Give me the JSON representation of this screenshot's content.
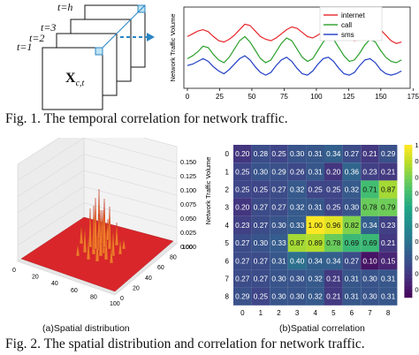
{
  "fig1": {
    "frame_labels": [
      "t=h",
      "t=3",
      "t=2",
      "t=1"
    ],
    "tensor_label_base": "X",
    "tensor_label_sub": "c,t",
    "caption": "Fig. 1.   The temporal correlation for network traffic."
  },
  "fig2": {
    "subcaption_a": "(a)Spatial distribution",
    "subcaption_b": "(b)Spatial correlation",
    "caption": "Fig. 2.   The spatial distribution and correlation for network traffic."
  },
  "chart_data": [
    {
      "type": "line",
      "title": "",
      "xlabel": "",
      "ylabel": "Network Traffic Volume",
      "xlim": [
        0,
        170
      ],
      "x_ticks": [
        0,
        25,
        50,
        75,
        100,
        125,
        150,
        175
      ],
      "legend_position": "top-right",
      "series": [
        {
          "name": "internet",
          "color": "#e8262b",
          "values": [
            0.7,
            0.74,
            0.78,
            0.8,
            0.77,
            0.7,
            0.64,
            0.62,
            0.66,
            0.72,
            0.8,
            0.88,
            0.86,
            0.78,
            0.7,
            0.66,
            0.64,
            0.68,
            0.74,
            0.8,
            0.84,
            0.82,
            0.76,
            0.7,
            0.68,
            0.72,
            0.78,
            0.84,
            0.86,
            0.82,
            0.74,
            0.68,
            0.64,
            0.66,
            0.72,
            0.78,
            0.82,
            0.8,
            0.72,
            0.64,
            0.6,
            0.62
          ]
        },
        {
          "name": "call",
          "color": "#2aa02b",
          "values": [
            0.38,
            0.42,
            0.48,
            0.56,
            0.54,
            0.44,
            0.36,
            0.32,
            0.4,
            0.52,
            0.64,
            0.7,
            0.62,
            0.5,
            0.38,
            0.32,
            0.36,
            0.48,
            0.6,
            0.68,
            0.64,
            0.52,
            0.4,
            0.34,
            0.38,
            0.5,
            0.62,
            0.7,
            0.66,
            0.54,
            0.42,
            0.34,
            0.36,
            0.46,
            0.58,
            0.66,
            0.62,
            0.5,
            0.4,
            0.34,
            0.32,
            0.36
          ]
        },
        {
          "name": "sms",
          "color": "#1f3cc4",
          "values": [
            0.28,
            0.3,
            0.34,
            0.38,
            0.34,
            0.26,
            0.2,
            0.16,
            0.22,
            0.3,
            0.38,
            0.42,
            0.36,
            0.26,
            0.18,
            0.14,
            0.18,
            0.28,
            0.36,
            0.4,
            0.34,
            0.24,
            0.16,
            0.14,
            0.2,
            0.3,
            0.38,
            0.4,
            0.34,
            0.24,
            0.16,
            0.14,
            0.18,
            0.28,
            0.36,
            0.38,
            0.32,
            0.22,
            0.16,
            0.14,
            0.16,
            0.2
          ]
        }
      ]
    },
    {
      "type": "surface3d",
      "title": "",
      "zlabel": "Network Traffic Volume",
      "z_ticks": [
        "0.150",
        "0.125",
        "0.100",
        "0.075",
        "0.050",
        "0.025",
        "0.000"
      ],
      "x_ticks": [
        "0",
        "20",
        "40",
        "60",
        "80",
        "100"
      ],
      "y_ticks": [
        "0",
        "20",
        "40",
        "60",
        "80",
        "100"
      ],
      "color": "#d9262b"
    },
    {
      "type": "heatmap",
      "x_ticks": [
        "0",
        "1",
        "2",
        "3",
        "4",
        "5",
        "6",
        "7",
        "8"
      ],
      "y_ticks": [
        "0",
        "1",
        "2",
        "3",
        "4",
        "5",
        "6",
        "7",
        "8"
      ],
      "colorbar_ticks": [
        "1.0",
        "0.9",
        "0.8",
        "0.7",
        "0.6",
        "0.5",
        "0.4",
        "0.3",
        "0.2",
        "0.1"
      ],
      "colormap": "viridis",
      "vmin": 0.05,
      "vmax": 1.0,
      "matrix": [
        [
          0.2,
          0.28,
          0.25,
          0.3,
          0.31,
          0.34,
          0.27,
          0.21,
          0.29
        ],
        [
          0.25,
          0.3,
          0.29,
          0.26,
          0.31,
          0.2,
          0.36,
          0.23,
          0.21
        ],
        [
          0.25,
          0.25,
          0.27,
          0.32,
          0.25,
          0.25,
          0.32,
          0.71,
          0.87
        ],
        [
          0.2,
          0.27,
          0.27,
          0.32,
          0.31,
          0.25,
          0.3,
          0.78,
          0.79
        ],
        [
          0.23,
          0.27,
          0.3,
          0.33,
          1.0,
          0.96,
          0.82,
          0.34,
          0.23
        ],
        [
          0.27,
          0.3,
          0.33,
          0.87,
          0.89,
          0.78,
          0.69,
          0.69,
          0.21
        ],
        [
          0.27,
          0.27,
          0.31,
          0.4,
          0.34,
          0.34,
          0.27,
          0.1,
          0.15
        ],
        [
          0.27,
          0.27,
          0.3,
          0.3,
          0.32,
          0.21,
          0.31,
          0.3,
          0.31
        ],
        [
          0.29,
          0.25,
          0.3,
          0.3,
          0.32,
          0.21,
          0.31,
          0.3,
          0.31
        ]
      ]
    }
  ]
}
